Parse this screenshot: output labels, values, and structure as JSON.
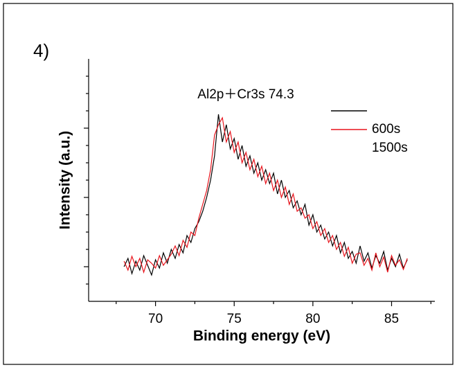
{
  "chart_data": {
    "type": "line",
    "panel_label": "4)",
    "annotation": "Al2p＋Cr3s 74.3",
    "xlabel": "Binding energy  (eV)",
    "ylabel": "Intensity (a.u.)",
    "xlim": [
      65.75,
      87.75
    ],
    "xticks": [
      70,
      75,
      80,
      85
    ],
    "xticks_minor": [
      67.5,
      72.5,
      77.5,
      82.5,
      87.5
    ],
    "ylim": [
      0,
      3.5
    ],
    "yticks_unlabeled": [
      0.5,
      1.5,
      2.5
    ],
    "yticks_minor": [
      0.25,
      0.75,
      1,
      1.25,
      1.75,
      2,
      2.25,
      2.75,
      3,
      3.25
    ],
    "x": [
      68,
      68.25,
      68.5,
      68.75,
      69,
      69.25,
      69.5,
      69.75,
      70,
      70.25,
      70.5,
      70.75,
      71,
      71.25,
      71.5,
      71.75,
      72,
      72.25,
      72.5,
      72.75,
      73,
      73.25,
      73.5,
      73.75,
      74,
      74.25,
      74.5,
      74.75,
      75,
      75.25,
      75.5,
      75.75,
      76,
      76.25,
      76.5,
      76.75,
      77,
      77.25,
      77.5,
      77.75,
      78,
      78.25,
      78.5,
      78.75,
      79,
      79.25,
      79.5,
      79.75,
      80,
      80.25,
      80.5,
      80.75,
      81,
      81.25,
      81.5,
      81.75,
      82,
      82.25,
      82.5,
      82.75,
      83,
      83.25,
      83.5,
      83.75,
      84,
      84.25,
      84.5,
      84.75,
      85,
      85.25,
      85.5,
      85.75,
      86
    ],
    "series": [
      {
        "name": "600s",
        "color": "#000000",
        "values": [
          0.5,
          0.62,
          0.4,
          0.58,
          0.45,
          0.66,
          0.52,
          0.38,
          0.6,
          0.48,
          0.7,
          0.55,
          0.75,
          0.62,
          0.82,
          0.7,
          0.95,
          0.85,
          1.05,
          1.15,
          1.3,
          1.5,
          1.75,
          2.1,
          2.7,
          2.3,
          2.55,
          2.2,
          2.35,
          2.05,
          2.25,
          1.95,
          2.1,
          1.85,
          2.0,
          1.75,
          1.9,
          1.7,
          1.85,
          1.55,
          1.75,
          1.5,
          1.6,
          1.35,
          1.45,
          1.25,
          1.4,
          1.1,
          1.25,
          1.0,
          1.1,
          0.9,
          1.0,
          0.8,
          0.95,
          0.7,
          0.85,
          0.62,
          0.72,
          0.55,
          0.8,
          0.58,
          0.7,
          0.48,
          0.66,
          0.55,
          0.72,
          0.45,
          0.62,
          0.5,
          0.68,
          0.48,
          0.6
        ]
      },
      {
        "name": "1500s",
        "color": "#e8141c",
        "values": [
          0.58,
          0.45,
          0.65,
          0.5,
          0.62,
          0.42,
          0.6,
          0.55,
          0.48,
          0.66,
          0.52,
          0.6,
          0.68,
          0.8,
          0.66,
          0.88,
          0.78,
          1.0,
          0.95,
          1.2,
          1.4,
          1.6,
          1.9,
          2.4,
          2.55,
          2.65,
          2.3,
          2.45,
          2.15,
          2.3,
          2.0,
          2.15,
          1.9,
          2.05,
          1.8,
          1.95,
          1.7,
          1.85,
          1.6,
          1.75,
          1.5,
          1.65,
          1.4,
          1.55,
          1.3,
          1.35,
          1.2,
          1.25,
          1.05,
          1.15,
          0.95,
          1.05,
          0.85,
          0.95,
          0.75,
          0.85,
          0.65,
          0.78,
          0.55,
          0.68,
          0.7,
          0.52,
          0.62,
          0.45,
          0.7,
          0.5,
          0.64,
          0.42,
          0.66,
          0.52,
          0.6,
          0.46,
          0.62
        ]
      }
    ]
  }
}
